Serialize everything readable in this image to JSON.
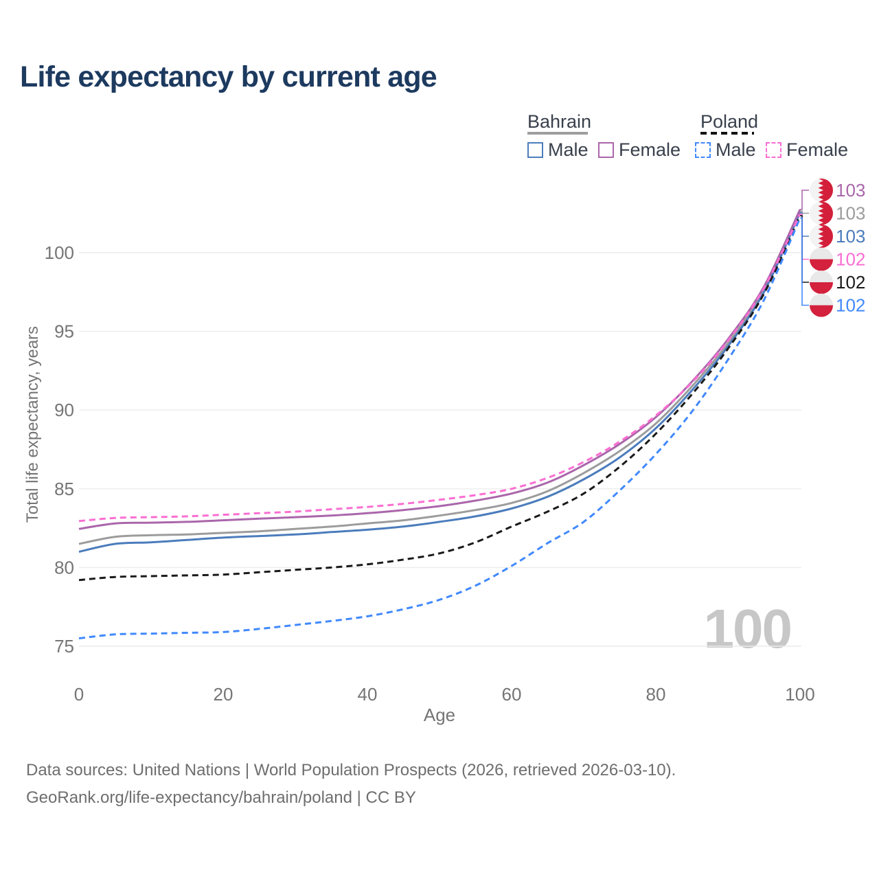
{
  "title": "Life expectancy by current age",
  "legend": {
    "groups": [
      {
        "label": "Bahrain",
        "dashed": false,
        "underline_color": "#9e9e9e",
        "items": [
          {
            "label": "Male",
            "color": "#4b7cbc",
            "dashed": false
          },
          {
            "label": "Female",
            "color": "#aa66aa",
            "dashed": false
          }
        ]
      },
      {
        "label": "Poland",
        "dashed": true,
        "underline_color": "#111111",
        "items": [
          {
            "label": "Male",
            "color": "#4189fd",
            "dashed": true
          },
          {
            "label": "Female",
            "color": "#fa6ed2",
            "dashed": true
          }
        ]
      }
    ]
  },
  "chart_data": {
    "type": "line",
    "title": "Life expectancy by current age",
    "xlabel": "Age",
    "ylabel": "Total life expectancy, years",
    "xlim": [
      0,
      100
    ],
    "ylim": [
      75,
      100
    ],
    "x_ticks": [
      0,
      20,
      40,
      60,
      80,
      100
    ],
    "y_ticks": [
      75,
      80,
      85,
      90,
      95,
      100
    ],
    "grid": "horizontal",
    "legend_position": "top-right",
    "watermark": "100",
    "x": [
      0,
      5,
      10,
      15,
      20,
      25,
      30,
      35,
      40,
      45,
      50,
      55,
      60,
      65,
      70,
      75,
      80,
      85,
      90,
      95,
      100
    ],
    "series": [
      {
        "name": "Bahrain Both sexes",
        "country": "Bahrain",
        "flag": "bahrain",
        "color": "#9c9c9c",
        "dashed": false,
        "end_label": "103",
        "values": [
          81.5,
          81.95,
          82.05,
          82.1,
          82.2,
          82.3,
          82.45,
          82.6,
          82.8,
          83.0,
          83.3,
          83.65,
          84.1,
          84.85,
          86.0,
          87.4,
          89.15,
          91.5,
          94.25,
          97.65,
          102.65
        ]
      },
      {
        "name": "Bahrain Male",
        "country": "Bahrain",
        "flag": "bahrain",
        "color": "#4b7cbc",
        "dashed": false,
        "end_label": "103",
        "values": [
          81.0,
          81.5,
          81.6,
          81.75,
          81.9,
          82.0,
          82.1,
          82.25,
          82.4,
          82.6,
          82.9,
          83.25,
          83.75,
          84.5,
          85.6,
          87.0,
          88.85,
          91.25,
          94.05,
          97.5,
          102.55
        ]
      },
      {
        "name": "Bahrain Female",
        "country": "Bahrain",
        "flag": "bahrain",
        "color": "#aa66aa",
        "dashed": false,
        "end_label": "103",
        "values": [
          82.45,
          82.8,
          82.85,
          82.9,
          83.0,
          83.1,
          83.2,
          83.3,
          83.45,
          83.65,
          83.9,
          84.25,
          84.7,
          85.4,
          86.5,
          87.85,
          89.55,
          91.8,
          94.5,
          97.85,
          102.75
        ]
      },
      {
        "name": "Poland Both sexes",
        "country": "Poland",
        "flag": "poland",
        "color": "#1a1a1a",
        "dashed": true,
        "end_label": "102",
        "values": [
          79.2,
          79.4,
          79.45,
          79.5,
          79.55,
          79.7,
          79.85,
          80.0,
          80.2,
          80.5,
          80.9,
          81.6,
          82.6,
          83.55,
          84.7,
          86.4,
          88.5,
          91.0,
          93.9,
          97.4,
          102.35
        ]
      },
      {
        "name": "Poland Male",
        "country": "Poland",
        "flag": "poland",
        "color": "#4189fd",
        "dashed": true,
        "end_label": "102",
        "values": [
          75.5,
          75.75,
          75.8,
          75.85,
          75.9,
          76.1,
          76.35,
          76.6,
          76.9,
          77.35,
          77.95,
          78.85,
          80.1,
          81.55,
          82.9,
          84.9,
          87.2,
          89.9,
          93.2,
          97.0,
          102.2
        ]
      },
      {
        "name": "Poland Female",
        "country": "Poland",
        "flag": "poland",
        "color": "#fa6ed2",
        "dashed": true,
        "end_label": "102",
        "values": [
          82.95,
          83.15,
          83.2,
          83.25,
          83.35,
          83.45,
          83.55,
          83.7,
          83.85,
          84.05,
          84.3,
          84.6,
          85.0,
          85.7,
          86.7,
          88.0,
          89.65,
          91.75,
          94.4,
          97.75,
          102.45
        ]
      }
    ],
    "flag_colors": {
      "bahrain_red": "#d41f3b",
      "bahrain_white": "#f3f3f3",
      "poland_red": "#d4213d",
      "poland_white": "#e9e9e9"
    }
  },
  "footer": {
    "line1": "Data sources: United Nations | World Population Prospects (2026, retrieved 2026-03-10).",
    "line2": "GeoRank.org/life-expectancy/bahrain/poland | CC BY"
  }
}
